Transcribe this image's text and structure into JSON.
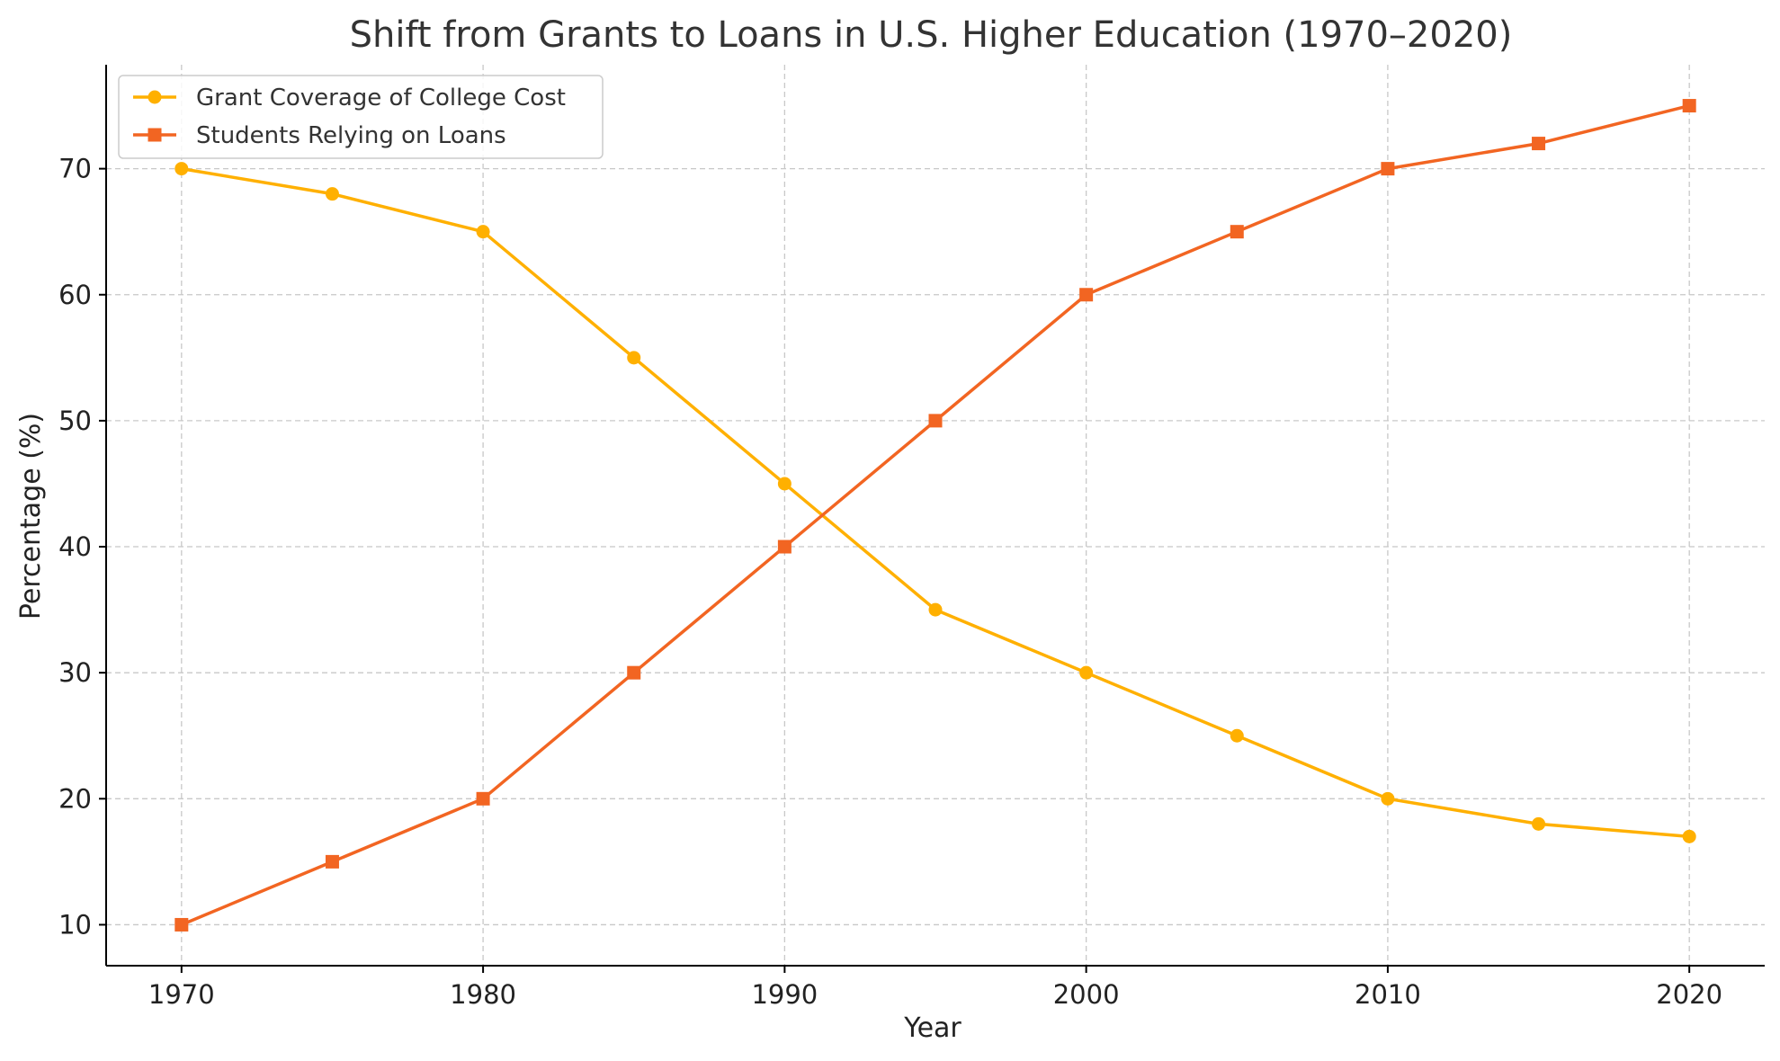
{
  "chart_data": {
    "type": "line",
    "title": "Shift from Grants to Loans in U.S. Higher Education (1970–2020)",
    "xlabel": "Year",
    "ylabel": "Percentage (%)",
    "x": [
      1970,
      1975,
      1980,
      1985,
      1990,
      1995,
      2000,
      2005,
      2010,
      2015,
      2020
    ],
    "xlim": [
      1967.5,
      2022.5
    ],
    "ylim": [
      6.75,
      78.25
    ],
    "x_ticks": [
      1970,
      1980,
      1990,
      2000,
      2010,
      2020
    ],
    "y_ticks": [
      10,
      20,
      30,
      40,
      50,
      60,
      70
    ],
    "grid": true,
    "legend_position": "top-left",
    "series": [
      {
        "name": "Grant Coverage of College Cost",
        "color": "#FFB000",
        "marker": "circle",
        "values": [
          70,
          68,
          65,
          55,
          45,
          35,
          30,
          25,
          20,
          18,
          17
        ]
      },
      {
        "name": "Students Relying on Loans",
        "color": "#F26522",
        "marker": "square",
        "values": [
          10,
          15,
          20,
          30,
          40,
          50,
          60,
          65,
          70,
          72,
          75
        ]
      }
    ]
  }
}
